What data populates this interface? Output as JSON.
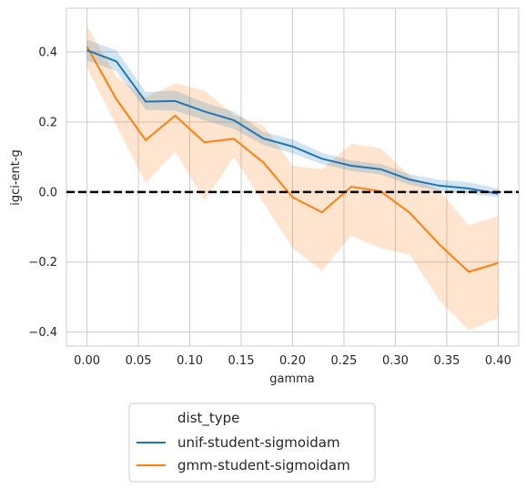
{
  "chart_data": {
    "type": "line",
    "title": "",
    "xlabel": "gamma",
    "ylabel": "igci-ent-g",
    "xlim": [
      -0.02,
      0.42
    ],
    "ylim": [
      -0.44,
      0.525
    ],
    "xticks": [
      0.0,
      0.05,
      0.1,
      0.15,
      0.2,
      0.25,
      0.3,
      0.35,
      0.4
    ],
    "xtick_labels": [
      "0.00",
      "0.05",
      "0.10",
      "0.15",
      "0.20",
      "0.25",
      "0.30",
      "0.35",
      "0.40"
    ],
    "yticks": [
      -0.4,
      -0.2,
      0.0,
      0.2,
      0.4
    ],
    "ytick_labels": [
      "−0.4",
      "−0.2",
      "0.0",
      "0.2",
      "0.4"
    ],
    "grid": true,
    "reference_line": {
      "y": 0.0,
      "style": "dashed",
      "color": "#000000"
    },
    "legend": {
      "title": "dist_type",
      "placement": "bottom-outside"
    },
    "x": [
      0.0,
      0.0286,
      0.0571,
      0.0857,
      0.1143,
      0.1429,
      0.1714,
      0.2,
      0.2286,
      0.2571,
      0.2857,
      0.3143,
      0.3429,
      0.3714,
      0.4
    ],
    "series": [
      {
        "name": "unif-student-sigmoidam",
        "color": "#1f77b4",
        "values": [
          0.405,
          0.373,
          0.258,
          0.26,
          0.23,
          0.205,
          0.153,
          0.13,
          0.095,
          0.075,
          0.065,
          0.035,
          0.018,
          0.01,
          -0.005
        ],
        "ci_lower": [
          0.375,
          0.345,
          0.235,
          0.232,
          0.205,
          0.18,
          0.135,
          0.11,
          0.08,
          0.06,
          0.05,
          0.02,
          0.003,
          -0.005,
          -0.015
        ],
        "ci_upper": [
          0.435,
          0.405,
          0.285,
          0.29,
          0.255,
          0.23,
          0.172,
          0.15,
          0.112,
          0.09,
          0.08,
          0.05,
          0.035,
          0.028,
          0.01
        ]
      },
      {
        "name": "gmm-student-sigmoidam",
        "color": "#ff7f0e",
        "values": [
          0.415,
          0.265,
          0.148,
          0.218,
          0.142,
          0.152,
          0.085,
          -0.015,
          -0.058,
          0.015,
          0.002,
          -0.06,
          -0.15,
          -0.228,
          -0.203
        ],
        "ci_lower": [
          0.355,
          0.19,
          0.025,
          0.115,
          -0.025,
          0.1,
          -0.03,
          -0.16,
          -0.225,
          -0.125,
          -0.16,
          -0.18,
          -0.31,
          -0.395,
          -0.36
        ],
        "ci_upper": [
          0.475,
          0.33,
          0.27,
          0.31,
          0.29,
          0.22,
          0.19,
          0.075,
          0.065,
          0.138,
          0.125,
          0.045,
          0.005,
          -0.095,
          -0.068
        ]
      }
    ]
  }
}
